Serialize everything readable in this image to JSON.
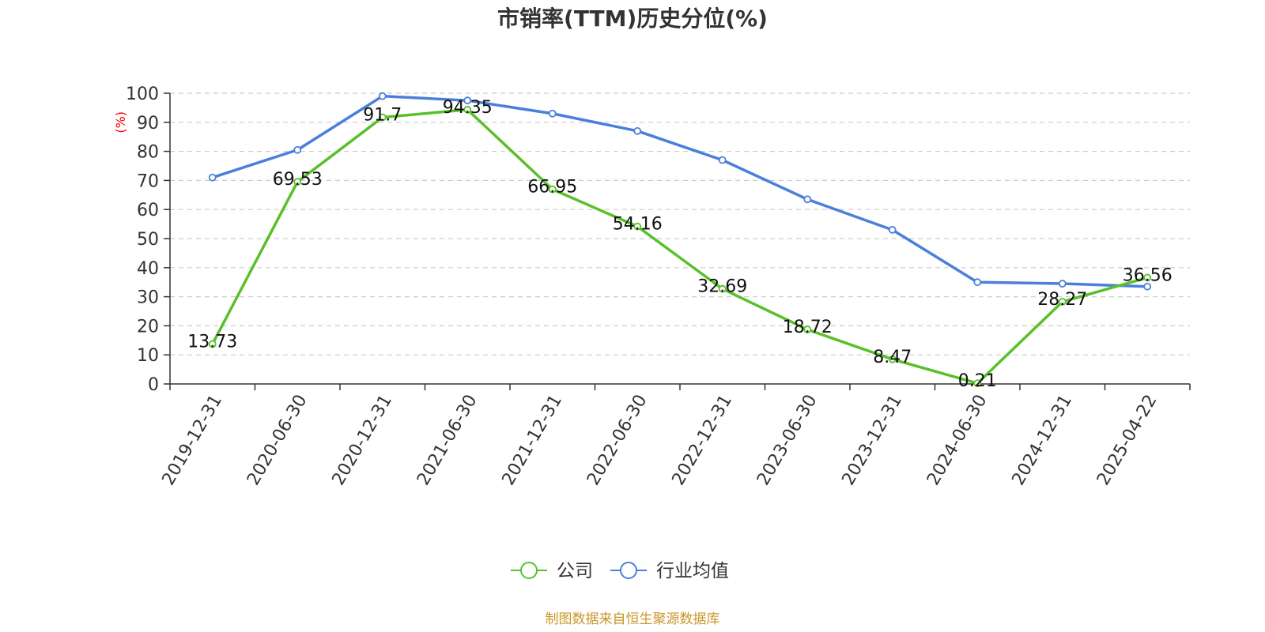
{
  "chart_data": {
    "type": "line",
    "title": "市销率(TTM)历史分位(%)",
    "ylabel": "(%)",
    "ylim": [
      0,
      100
    ],
    "yticks": [
      0,
      10,
      20,
      30,
      40,
      50,
      60,
      70,
      80,
      90,
      100
    ],
    "grid": true,
    "legend_position": "bottom-center",
    "categories": [
      "2019-12-31",
      "2020-06-30",
      "2020-12-31",
      "2021-06-30",
      "2021-12-31",
      "2022-06-30",
      "2022-12-31",
      "2023-06-30",
      "2023-12-31",
      "2024-06-30",
      "2024-12-31",
      "2025-04-22"
    ],
    "series": [
      {
        "name": "公司",
        "color": "#5ac02a",
        "values": [
          13.73,
          69.53,
          91.7,
          94.35,
          66.95,
          54.16,
          32.69,
          18.72,
          8.47,
          0.21,
          28.27,
          36.56
        ],
        "labels": [
          "13.73",
          "69.53",
          "91.7",
          "94.35",
          "66.95",
          "54.16",
          "32.69",
          "18.72",
          "8.47",
          "0.21",
          "28.27",
          "36.56"
        ]
      },
      {
        "name": "行业均值",
        "color": "#4b7fdb",
        "values": [
          71,
          80.5,
          99,
          97.5,
          93,
          87,
          77,
          63.5,
          53,
          35,
          34.5,
          33.5
        ]
      }
    ],
    "source": "制图数据来自恒生聚源数据库"
  }
}
